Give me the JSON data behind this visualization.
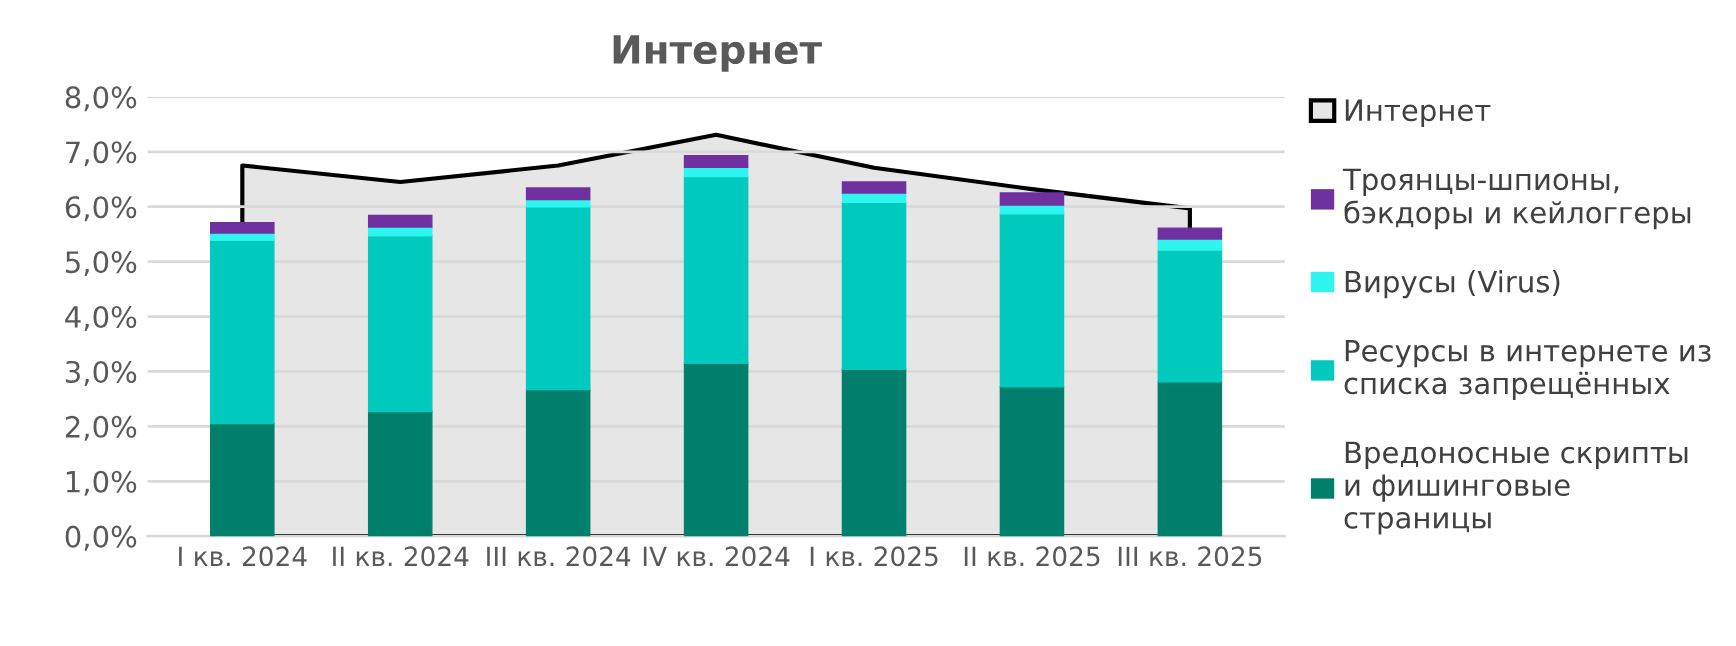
{
  "chart_data": [
    {
      "type": "bar",
      "title": "Интернет",
      "stacked": true,
      "categories": [
        "I кв. 2024",
        "II кв. 2024",
        "III кв. 2024",
        "IV кв. 2024",
        "I кв. 2025",
        "II кв. 2025",
        "III кв. 2025"
      ],
      "series": [
        {
          "name": "Вредоносные скрипты\nи фишинговые\nстраницы",
          "color": "#00806c",
          "values": [
            2.05,
            2.27,
            2.67,
            3.15,
            3.04,
            2.72,
            2.81
          ]
        },
        {
          "name": "Ресурсы в интернете из\nсписка запрещённых",
          "color": "#00c9bd",
          "values": [
            3.34,
            3.2,
            3.33,
            3.4,
            3.04,
            3.15,
            2.4
          ]
        },
        {
          "name": "Вирусы (Virus)",
          "color": "#2ef5ef",
          "values": [
            0.13,
            0.16,
            0.13,
            0.17,
            0.17,
            0.16,
            0.2
          ]
        },
        {
          "name": "Троянцы-шпионы,\nбэкдоры и кейлоггеры",
          "color": "#7030a0",
          "values": [
            0.19,
            0.21,
            0.21,
            0.21,
            0.2,
            0.22,
            0.2
          ]
        }
      ],
      "ylim": [
        0,
        8.0
      ],
      "yticks": [
        {
          "value": 0,
          "label": "0,0%"
        },
        {
          "value": 1,
          "label": "1,0%"
        },
        {
          "value": 2,
          "label": "2,0%"
        },
        {
          "value": 3,
          "label": "3,0%"
        },
        {
          "value": 4,
          "label": "4,0%"
        },
        {
          "value": 5,
          "label": "5,0%"
        },
        {
          "value": 6,
          "label": "6,0%"
        },
        {
          "value": 7,
          "label": "7,0%"
        },
        {
          "value": 8,
          "label": "8,0%"
        }
      ],
      "grid": "y",
      "legend": "right"
    },
    {
      "type": "area",
      "categories": [
        null,
        null,
        null,
        null,
        null,
        null,
        null
      ],
      "series": [
        {
          "name": "Интернет",
          "color": "#e6e6e6",
          "values": [
            6.75,
            6.45,
            6.75,
            7.31,
            6.71,
            6.32,
            5.97
          ]
        }
      ],
      "ylim": [
        0,
        8.0
      ],
      "legend": "right"
    }
  ]
}
